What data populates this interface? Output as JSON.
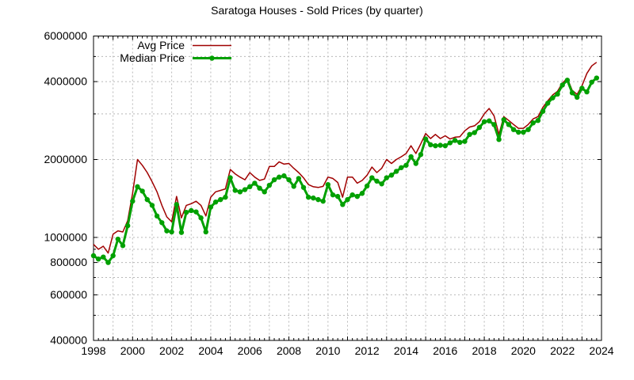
{
  "chart_data": {
    "type": "line",
    "title": "Saratoga Houses - Sold Prices (by quarter)",
    "x_start": 1998.0,
    "x_step_years": 0.25,
    "xlim": [
      1998,
      2024
    ],
    "ylim": [
      400000,
      6000000
    ],
    "y_scale": "log",
    "grid": true,
    "legend_position": "top-left",
    "x_tick_labels": [
      1998,
      2000,
      2002,
      2004,
      2006,
      2008,
      2010,
      2012,
      2014,
      2016,
      2018,
      2020,
      2022,
      2024
    ],
    "y_tick_labels": [
      400000,
      600000,
      800000,
      1000000,
      2000000,
      4000000,
      6000000
    ],
    "y_minor_grid": [
      500000,
      700000,
      900000,
      3000000,
      5000000
    ],
    "grid_color": "#b8b8b8",
    "border_color": "#000000",
    "series": [
      {
        "name": "Avg Price",
        "color": "#a00000",
        "line_width": 1.5,
        "marker": "none",
        "values": [
          940000,
          900000,
          925000,
          870000,
          1030000,
          1060000,
          1050000,
          1160000,
          1480000,
          2000000,
          1900000,
          1780000,
          1640000,
          1500000,
          1330000,
          1200000,
          1150000,
          1440000,
          1190000,
          1330000,
          1350000,
          1380000,
          1330000,
          1210000,
          1430000,
          1500000,
          1520000,
          1540000,
          1830000,
          1760000,
          1710000,
          1670000,
          1780000,
          1710000,
          1660000,
          1680000,
          1880000,
          1880000,
          1960000,
          1920000,
          1930000,
          1850000,
          1780000,
          1700000,
          1600000,
          1570000,
          1560000,
          1575000,
          1710000,
          1690000,
          1630000,
          1430000,
          1710000,
          1710000,
          1620000,
          1660000,
          1740000,
          1870000,
          1780000,
          1850000,
          2000000,
          1930000,
          2000000,
          2050000,
          2110000,
          2260000,
          2110000,
          2300000,
          2520000,
          2410000,
          2500000,
          2410000,
          2470000,
          2400000,
          2440000,
          2450000,
          2580000,
          2670000,
          2700000,
          2800000,
          3000000,
          3150000,
          2950000,
          2500000,
          2930000,
          2830000,
          2730000,
          2640000,
          2640000,
          2730000,
          2870000,
          2930000,
          3180000,
          3370000,
          3550000,
          3670000,
          3950000,
          4120000,
          3700000,
          3570000,
          3850000,
          4300000,
          4600000,
          4750000
        ]
      },
      {
        "name": "Median Price",
        "color": "#00a000",
        "line_width": 3,
        "marker": "circle",
        "marker_size": 3.2,
        "values": [
          850000,
          825000,
          840000,
          800000,
          850000,
          985000,
          930000,
          1110000,
          1380000,
          1570000,
          1510000,
          1400000,
          1330000,
          1210000,
          1140000,
          1060000,
          1050000,
          1340000,
          1045000,
          1250000,
          1270000,
          1255000,
          1190000,
          1050000,
          1310000,
          1370000,
          1400000,
          1430000,
          1700000,
          1520000,
          1500000,
          1530000,
          1570000,
          1620000,
          1550000,
          1500000,
          1590000,
          1670000,
          1710000,
          1730000,
          1670000,
          1575000,
          1690000,
          1560000,
          1430000,
          1420000,
          1400000,
          1380000,
          1600000,
          1460000,
          1440000,
          1340000,
          1400000,
          1460000,
          1440000,
          1480000,
          1580000,
          1700000,
          1650000,
          1610000,
          1700000,
          1740000,
          1800000,
          1860000,
          1900000,
          2050000,
          1930000,
          2090000,
          2400000,
          2280000,
          2260000,
          2270000,
          2260000,
          2320000,
          2370000,
          2330000,
          2350000,
          2500000,
          2540000,
          2660000,
          2800000,
          2820000,
          2730000,
          2390000,
          2850000,
          2730000,
          2610000,
          2550000,
          2550000,
          2610000,
          2770000,
          2830000,
          3070000,
          3300000,
          3460000,
          3580000,
          3880000,
          4050000,
          3620000,
          3480000,
          3770000,
          3650000,
          3980000,
          4130000
        ]
      }
    ]
  }
}
